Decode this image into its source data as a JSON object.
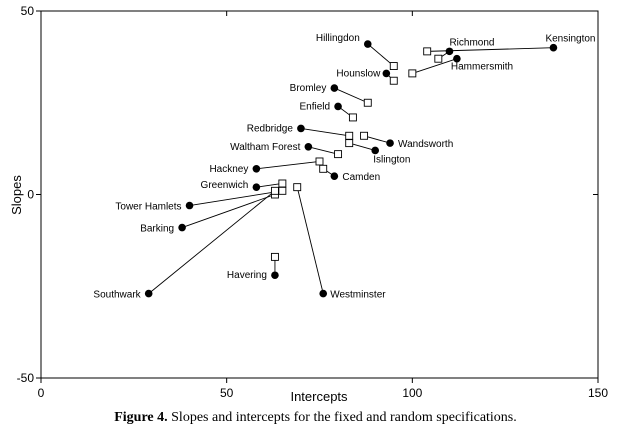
{
  "caption": {
    "label": "Figure 4.",
    "text": "Slopes and intercepts for the fixed and random specifications."
  },
  "chart_data": {
    "type": "scatter",
    "title": "",
    "xlabel": "Intercepts",
    "ylabel": "Slopes",
    "xlim": [
      0,
      150
    ],
    "ylim": [
      -50,
      50
    ],
    "xticks": [
      0,
      50,
      100,
      150
    ],
    "yticks": [
      -50,
      0,
      50
    ],
    "grid": false,
    "legend": "none",
    "marker_fixed": "filled circle",
    "marker_random": "open square",
    "points": [
      {
        "label": "Kensington",
        "fixed": [
          138,
          40
        ],
        "random": [
          104,
          39
        ]
      },
      {
        "label": "Richmond",
        "fixed": [
          110,
          39
        ],
        "random": [
          107,
          37
        ]
      },
      {
        "label": "Hammersmith",
        "fixed": [
          112,
          37
        ],
        "random": [
          100,
          33
        ]
      },
      {
        "label": "Hillingdon",
        "fixed": [
          88,
          41
        ],
        "random": [
          95,
          35
        ]
      },
      {
        "label": "Hounslow",
        "fixed": [
          93,
          33
        ],
        "random": [
          95,
          31
        ]
      },
      {
        "label": "Bromley",
        "fixed": [
          79,
          29
        ],
        "random": [
          88,
          25
        ]
      },
      {
        "label": "Enfield",
        "fixed": [
          80,
          24
        ],
        "random": [
          84,
          21
        ]
      },
      {
        "label": "Redbridge",
        "fixed": [
          70,
          18
        ],
        "random": [
          83,
          16
        ]
      },
      {
        "label": "Wandsworth",
        "fixed": [
          94,
          14
        ],
        "random": [
          87,
          16
        ]
      },
      {
        "label": "Islington",
        "fixed": [
          90,
          12
        ],
        "random": [
          83,
          14
        ]
      },
      {
        "label": "Waltham Forest",
        "fixed": [
          72,
          13
        ],
        "random": [
          80,
          11
        ]
      },
      {
        "label": "Hackney",
        "fixed": [
          58,
          7
        ],
        "random": [
          75,
          9
        ]
      },
      {
        "label": "Camden",
        "fixed": [
          79,
          5
        ],
        "random": [
          76,
          7
        ]
      },
      {
        "label": "Greenwich",
        "fixed": [
          58,
          2
        ],
        "random": [
          65,
          3
        ]
      },
      {
        "label": "Tower Hamlets",
        "fixed": [
          40,
          -3
        ],
        "random": [
          65,
          1
        ]
      },
      {
        "label": "Barking",
        "fixed": [
          38,
          -9
        ],
        "random": [
          63,
          0
        ]
      },
      {
        "label": "Havering",
        "fixed": [
          63,
          -22
        ],
        "random": [
          63,
          -17
        ]
      },
      {
        "label": "Southwark",
        "fixed": [
          29,
          -27
        ],
        "random": [
          63,
          1
        ]
      },
      {
        "label": "Westminster",
        "fixed": [
          76,
          -27
        ],
        "random": [
          69,
          2
        ]
      }
    ]
  }
}
